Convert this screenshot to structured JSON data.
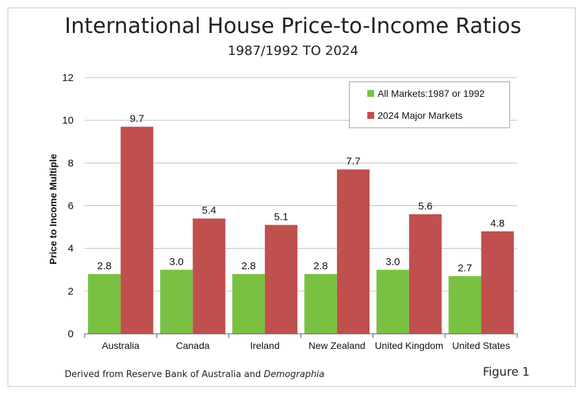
{
  "chart_data": {
    "type": "bar",
    "title": "International House Price-to-Income Ratios",
    "subtitle": "1987/1992 TO 2024",
    "xlabel": "",
    "ylabel": "Price to Income Multiple",
    "ylim": [
      0,
      12
    ],
    "yticks": [
      0,
      2,
      4,
      6,
      8,
      10,
      12
    ],
    "grid": true,
    "legend_position": "top-right",
    "categories": [
      "Australia",
      "Canada",
      "Ireland",
      "New Zealand",
      "United Kingdom",
      "United States"
    ],
    "series": [
      {
        "name": "All Markets:1987 or 1992",
        "color": "#7ac143",
        "values": [
          2.8,
          3.0,
          2.8,
          2.8,
          3.0,
          2.7
        ]
      },
      {
        "name": "2024 Major Markets",
        "color": "#c0504d",
        "values": [
          9.7,
          5.4,
          5.1,
          7.7,
          5.6,
          4.8
        ]
      }
    ]
  },
  "footnote": {
    "text": "Derived from Reserve Bank of Australia and ",
    "emphasis": "Demographia"
  },
  "figure_label": "Figure 1"
}
